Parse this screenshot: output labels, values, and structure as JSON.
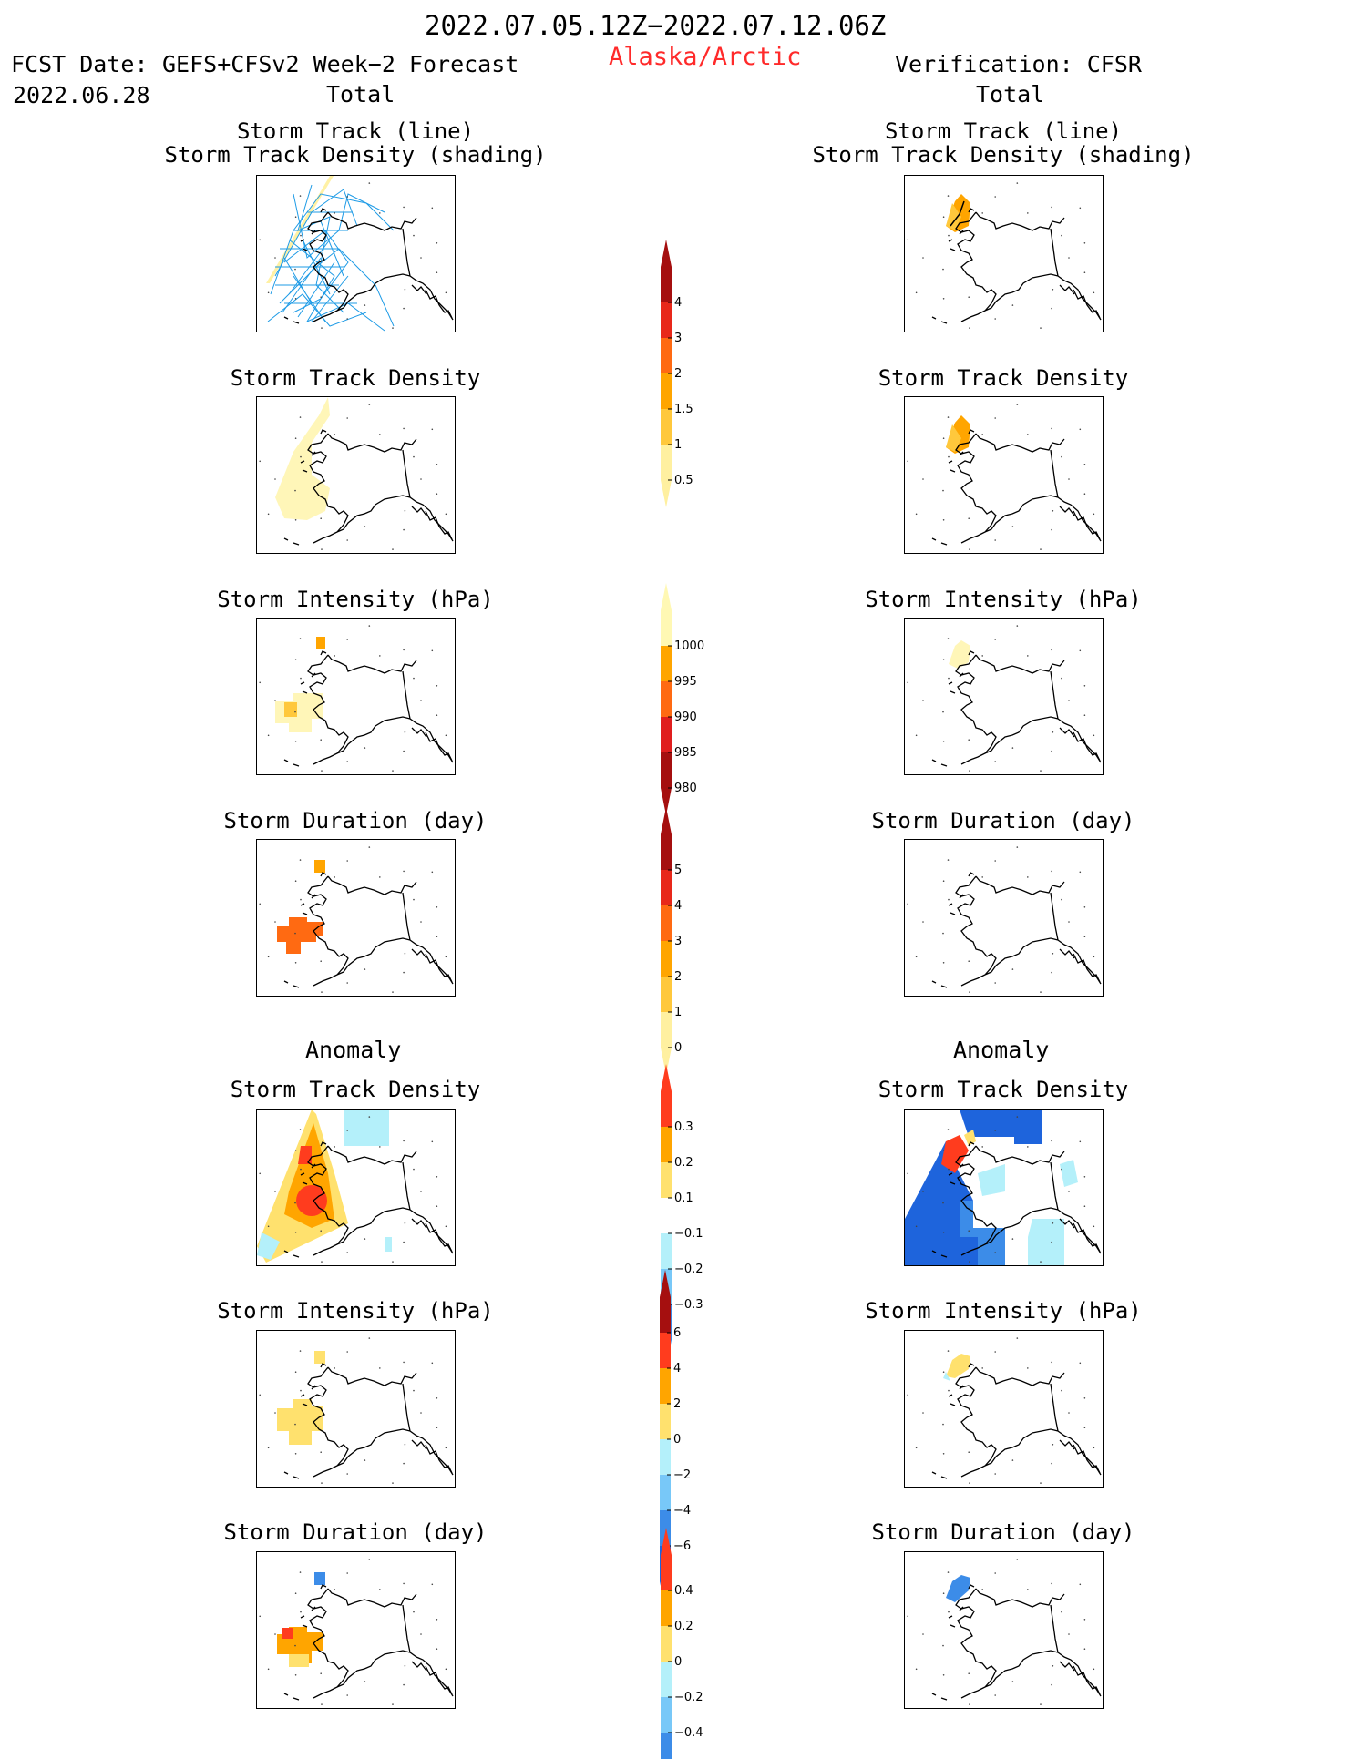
{
  "header": {
    "period": "2022.07.05.12Z−2022.07.12.06Z",
    "region": "Alaska/Arctic",
    "fcst_label": "FCST Date:",
    "fcst_model": "GEFS+CFSv2 Week−2 Forecast",
    "fcst_date": "2022.06.28",
    "verification": "Verification: CFSR"
  },
  "sections": {
    "total": "Total",
    "anomaly": "Anomaly"
  },
  "panel_titles": {
    "track_line": "Storm Track (line)",
    "track_shading": "Storm Track Density (shading)",
    "density": "Storm Track Density",
    "intensity": "Storm Intensity (hPa)",
    "duration": "Storm Duration (day)"
  },
  "colorbars": [
    {
      "name": "total-density-colorbar",
      "ticks": [
        "4",
        "3",
        "2",
        "1.5",
        "1",
        "0.5"
      ],
      "colors": [
        "#a50f0f",
        "#e8281a",
        "#ff6a12",
        "#ffa500",
        "#ffc83c",
        "#fff0a0"
      ]
    },
    {
      "name": "total-intensity-colorbar",
      "ticks": [
        "1000",
        "995",
        "990",
        "985",
        "980"
      ],
      "colors": [
        "#fff8b4",
        "#ffa500",
        "#ff6a12",
        "#e01e1e",
        "#a50f0f"
      ]
    },
    {
      "name": "total-duration-colorbar",
      "ticks": [
        "5",
        "4",
        "3",
        "2",
        "1",
        "0"
      ],
      "colors": [
        "#a50f0f",
        "#e8281a",
        "#ff6a12",
        "#ffa500",
        "#ffc83c",
        "#fff0a0"
      ]
    },
    {
      "name": "anomaly-density-colorbar",
      "ticks": [
        "0.3",
        "0.2",
        "0.1",
        "−0.1",
        "−0.2",
        "−0.3"
      ],
      "colors": [
        "#ff3c1e",
        "#ffa500",
        "#ffe16e",
        "#ffffff",
        "#b4f0fa",
        "#78c8f8",
        "#3c8ce8"
      ]
    },
    {
      "name": "anomaly-intensity-colorbar",
      "ticks": [
        "6",
        "4",
        "2",
        "0",
        "−2",
        "−4",
        "−6"
      ],
      "colors": [
        "#a50f0f",
        "#ff3c1e",
        "#ffa500",
        "#ffe16e",
        "#b4f0fa",
        "#78c8f8",
        "#3c8ce8",
        "#1e64dc"
      ]
    },
    {
      "name": "anomaly-duration-colorbar",
      "ticks": [
        "0.4",
        "0.2",
        "0",
        "−0.2",
        "−0.4"
      ],
      "colors": [
        "#ff3c1e",
        "#ffa500",
        "#ffe16e",
        "#b4f0fa",
        "#78c8f8",
        "#3c8ce8"
      ]
    }
  ],
  "colors": {
    "title_red": "#ff2a2a",
    "title_blue": "#1a33ff",
    "track_line": "#1e9be6"
  }
}
